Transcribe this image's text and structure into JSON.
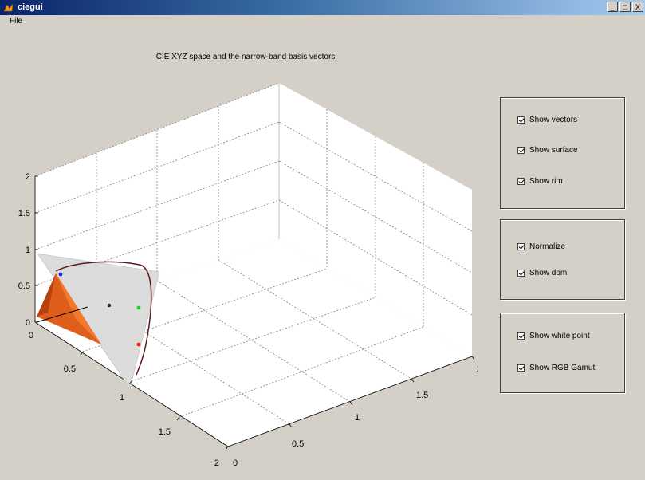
{
  "window": {
    "title": "ciegui",
    "controls": [
      "_",
      "□",
      "X"
    ]
  },
  "menu": {
    "items": [
      "File"
    ]
  },
  "plot": {
    "title": "CIE XYZ space and the narrow-band basis vectors",
    "z_ticks": [
      "2",
      "1.5",
      "1",
      "0.5",
      "0"
    ],
    "x_ticks": [
      "0",
      "0.5",
      "1",
      "1.5",
      "2"
    ],
    "y_ticks": [
      "0",
      "0.5",
      "1",
      "1.5",
      "2"
    ]
  },
  "controls": {
    "group1": {
      "items": [
        {
          "label": "Show vectors",
          "checked": true
        },
        {
          "label": "Show surface",
          "checked": true
        },
        {
          "label": "Show rim",
          "checked": true
        }
      ]
    },
    "group2": {
      "items": [
        {
          "label": "Normalize",
          "checked": true
        },
        {
          "label": "Show dom",
          "checked": true
        }
      ]
    },
    "group3": {
      "items": [
        {
          "label": "Show white point",
          "checked": true
        },
        {
          "label": "Show RGB Gamut",
          "checked": true
        }
      ]
    }
  },
  "colors": {
    "accent": "#0a246a",
    "surface": "#e6e6e6",
    "gamut": "#e85a1c",
    "rim": "#5a1a1a"
  }
}
